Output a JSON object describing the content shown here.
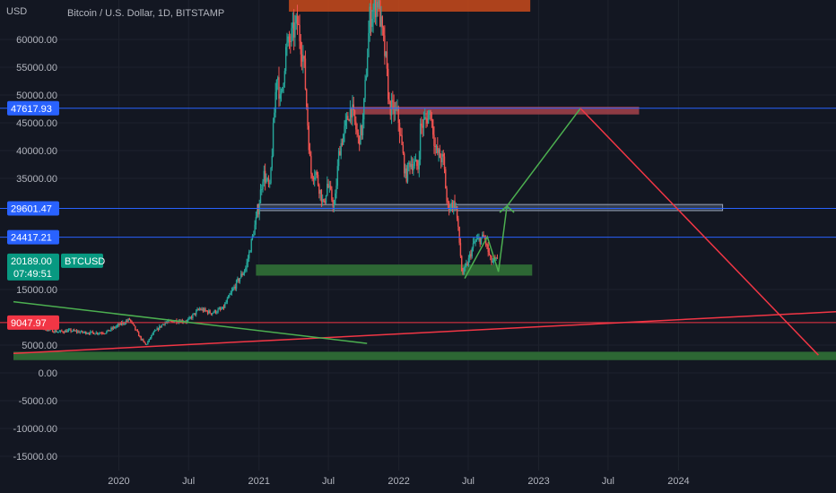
{
  "header": {
    "currency": "USD",
    "title": "Bitcoin / U.S. Dollar, 1D, BITSTAMP"
  },
  "colors": {
    "background": "#131722",
    "axis_text": "#b2b5be",
    "up": "#26a69a",
    "down": "#ef5350",
    "blue_line": "#2962ff",
    "green_zone": "#2e6b36",
    "red_line": "#f23645",
    "trend_green": "#4caf50",
    "tag_blue": "#2962ff",
    "tag_red": "#f23645",
    "tag_green": "#089981"
  },
  "chart_data": {
    "type": "candlestick",
    "title": "Bitcoin / U.S. Dollar, 1D, BITSTAMP",
    "symbol": "BTCUSD",
    "ylim": [
      -18000,
      67000
    ],
    "y_ticks": [
      {
        "value": 60000,
        "label": "60000.00"
      },
      {
        "value": 55000,
        "label": "55000.00"
      },
      {
        "value": 50000,
        "label": "50000.00"
      },
      {
        "value": 45000,
        "label": "45000.00"
      },
      {
        "value": 40000,
        "label": "40000.00"
      },
      {
        "value": 35000,
        "label": "35000.00"
      },
      {
        "value": 15000,
        "label": "15000.00"
      },
      {
        "value": 5000,
        "label": "5000.00"
      },
      {
        "value": 0,
        "label": "0.00"
      },
      {
        "value": -5000,
        "label": "-5000.00"
      },
      {
        "value": -10000,
        "label": "-10000.00"
      },
      {
        "value": -15000,
        "label": "-15000.00"
      }
    ],
    "x_range": [
      "2019-04-01",
      "2025-02-15"
    ],
    "x_ticks": [
      {
        "date": "2020-01-01",
        "label": "2020"
      },
      {
        "date": "2020-07-01",
        "label": "Jul"
      },
      {
        "date": "2021-01-01",
        "label": "2021"
      },
      {
        "date": "2021-07-01",
        "label": "Jul"
      },
      {
        "date": "2022-01-01",
        "label": "2022"
      },
      {
        "date": "2022-07-01",
        "label": "Jul"
      },
      {
        "date": "2023-01-01",
        "label": "2023"
      },
      {
        "date": "2023-07-01",
        "label": "Jul"
      },
      {
        "date": "2024-01-01",
        "label": "2024"
      }
    ],
    "price_path": [
      [
        "2019-04-01",
        9500
      ],
      [
        "2019-05-01",
        8800
      ],
      [
        "2019-06-01",
        8600
      ],
      [
        "2019-07-01",
        7800
      ],
      [
        "2019-08-01",
        7400
      ],
      [
        "2019-09-01",
        7600
      ],
      [
        "2019-10-01",
        7300
      ],
      [
        "2019-11-01",
        7200
      ],
      [
        "2019-12-01",
        7300
      ],
      [
        "2020-01-01",
        8500
      ],
      [
        "2020-02-01",
        9600
      ],
      [
        "2020-03-01",
        6200
      ],
      [
        "2020-03-15",
        5000
      ],
      [
        "2020-04-01",
        7000
      ],
      [
        "2020-05-01",
        9000
      ],
      [
        "2020-06-01",
        9400
      ],
      [
        "2020-07-01",
        9300
      ],
      [
        "2020-08-01",
        11500
      ],
      [
        "2020-09-01",
        10800
      ],
      [
        "2020-10-01",
        11500
      ],
      [
        "2020-11-01",
        15500
      ],
      [
        "2020-12-01",
        19000
      ],
      [
        "2021-01-01",
        29000
      ],
      [
        "2021-01-15",
        36000
      ],
      [
        "2021-02-01",
        33000
      ],
      [
        "2021-02-20",
        55000
      ],
      [
        "2021-03-01",
        48000
      ],
      [
        "2021-03-15",
        58000
      ],
      [
        "2021-04-14",
        63000
      ],
      [
        "2021-05-01",
        56000
      ],
      [
        "2021-05-19",
        36000
      ],
      [
        "2021-06-01",
        36000
      ],
      [
        "2021-06-22",
        30000
      ],
      [
        "2021-07-01",
        34000
      ],
      [
        "2021-07-20",
        29800
      ],
      [
        "2021-08-01",
        40000
      ],
      [
        "2021-09-01",
        48000
      ],
      [
        "2021-09-20",
        42000
      ],
      [
        "2021-10-01",
        44000
      ],
      [
        "2021-10-20",
        64000
      ],
      [
        "2021-11-10",
        67000
      ],
      [
        "2021-12-01",
        56000
      ],
      [
        "2021-12-10",
        48000
      ],
      [
        "2022-01-01",
        46500
      ],
      [
        "2022-01-22",
        35000
      ],
      [
        "2022-02-01",
        38000
      ],
      [
        "2022-02-24",
        37000
      ],
      [
        "2022-03-01",
        44000
      ],
      [
        "2022-03-28",
        47000
      ],
      [
        "2022-04-10",
        40000
      ],
      [
        "2022-05-01",
        38000
      ],
      [
        "2022-05-10",
        30000
      ],
      [
        "2022-06-01",
        30500
      ],
      [
        "2022-06-13",
        22000
      ],
      [
        "2022-06-18",
        17600
      ],
      [
        "2022-07-01",
        19500
      ],
      [
        "2022-07-20",
        23500
      ],
      [
        "2022-08-15",
        24400
      ],
      [
        "2022-09-01",
        20000
      ],
      [
        "2022-09-15",
        20189
      ]
    ],
    "horizontal_levels": [
      {
        "value": 47617.93,
        "label": "47617.93",
        "color": "#2962ff",
        "tag": "blue"
      },
      {
        "value": 29601.47,
        "label": "29601.47",
        "color": "#2962ff",
        "tag": "blue"
      },
      {
        "value": 24417.21,
        "label": "24417.21",
        "color": "#2962ff",
        "tag": "blue"
      },
      {
        "value": 9047.97,
        "label": "9047.97",
        "color": "#f23645",
        "tag": "red"
      }
    ],
    "current_price": {
      "value": 20189.0,
      "label": "20189.00",
      "countdown": "07:49:51",
      "symbol_tag": "BTCUSD"
    },
    "zones": [
      {
        "from": "2020-12-24",
        "to": "2022-12-15",
        "y0": 17500,
        "y1": 19500,
        "kind": "support",
        "color": "#2e6b36"
      },
      {
        "from": "2019-04-01",
        "to": "2025-02-15",
        "y0": 2300,
        "y1": 3800,
        "kind": "support",
        "color": "#2e6b36"
      },
      {
        "from": "2021-03-20",
        "to": "2022-12-10",
        "y0": 65000,
        "y1": 67500,
        "kind": "resistance",
        "color": "#c94a1b"
      },
      {
        "from": "2021-09-05",
        "to": "2023-09-20",
        "y0": 46500,
        "y1": 47900,
        "kind": "resistance",
        "color": "#a5424a"
      },
      {
        "from": "2020-12-28",
        "to": "2024-04-25",
        "y0": 29200,
        "y1": 30300,
        "kind": "range",
        "color": "#5b6a85"
      }
    ],
    "trendlines": [
      {
        "points": [
          [
            "2019-04-01",
            3500
          ],
          [
            "2025-02-15",
            11000
          ]
        ],
        "color": "#f23645"
      },
      {
        "points": [
          [
            "2019-04-01",
            12800
          ],
          [
            "2021-10-10",
            5300
          ]
        ],
        "color": "#4caf50"
      },
      {
        "points": [
          [
            "2022-06-22",
            17000
          ],
          [
            "2022-08-20",
            24500
          ],
          [
            "2022-09-18",
            18200
          ],
          [
            "2022-10-10",
            30000
          ],
          [
            "2023-04-20",
            47600
          ]
        ],
        "color": "#4caf50"
      },
      {
        "points": [
          [
            "2023-04-20",
            47600
          ],
          [
            "2024-12-31",
            3200
          ]
        ],
        "color": "#f23645"
      }
    ]
  }
}
